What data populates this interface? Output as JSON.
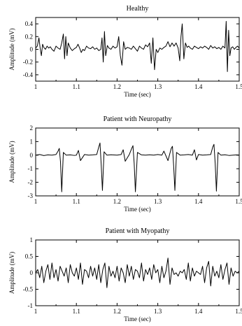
{
  "chart_data": [
    {
      "type": "line",
      "title": "Healthy",
      "xlabel": "Time (sec)",
      "ylabel": "Amplitude (mV)",
      "xlim": [
        1.0,
        1.5
      ],
      "ylim": [
        -0.5,
        0.5
      ],
      "x_ticks": [
        "1",
        "1.1",
        "1.2",
        "1.3",
        "1.4",
        "1.5"
      ],
      "y_ticks": [
        "0.4",
        "0.2",
        "0",
        "-0.2",
        "-0.4"
      ],
      "grid": false,
      "series": [
        {
          "x": [
            1.0,
            1.004,
            1.008,
            1.011,
            1.014,
            1.017,
            1.02,
            1.024,
            1.028,
            1.032,
            1.036,
            1.04,
            1.045,
            1.05,
            1.055,
            1.06,
            1.064,
            1.068,
            1.071,
            1.074,
            1.077,
            1.08,
            1.085,
            1.09,
            1.095,
            1.1,
            1.104,
            1.108,
            1.112,
            1.116,
            1.12,
            1.125,
            1.13,
            1.135,
            1.14,
            1.145,
            1.15,
            1.155,
            1.16,
            1.163,
            1.166,
            1.169,
            1.172,
            1.176,
            1.18,
            1.185,
            1.19,
            1.195,
            1.2,
            1.204,
            1.208,
            1.212,
            1.216,
            1.22,
            1.225,
            1.23,
            1.235,
            1.24,
            1.245,
            1.25,
            1.255,
            1.26,
            1.265,
            1.27,
            1.275,
            1.28,
            1.284,
            1.288,
            1.292,
            1.296,
            1.3,
            1.305,
            1.31,
            1.315,
            1.32,
            1.325,
            1.33,
            1.335,
            1.34,
            1.345,
            1.35,
            1.354,
            1.357,
            1.36,
            1.364,
            1.368,
            1.372,
            1.376,
            1.38,
            1.385,
            1.39,
            1.395,
            1.4,
            1.405,
            1.41,
            1.415,
            1.42,
            1.425,
            1.43,
            1.435,
            1.44,
            1.445,
            1.45,
            1.455,
            1.46,
            1.465,
            1.468,
            1.471,
            1.474,
            1.477,
            1.48,
            1.484,
            1.488,
            1.492,
            1.496,
            1.5
          ],
          "y": [
            0.02,
            0.05,
            0.18,
            0.02,
            -0.1,
            0.08,
            0.03,
            0.0,
            0.05,
            0.02,
            0.04,
            0.0,
            -0.03,
            0.05,
            0.02,
            0.0,
            0.1,
            0.24,
            -0.15,
            0.2,
            -0.1,
            0.1,
            0.02,
            -0.02,
            0.01,
            0.03,
            0.08,
            0.02,
            -0.05,
            0.0,
            -0.02,
            0.05,
            0.02,
            0.01,
            0.04,
            0.0,
            0.02,
            -0.02,
            0.0,
            0.18,
            -0.2,
            0.28,
            -0.1,
            0.06,
            0.02,
            0.0,
            0.05,
            0.02,
            0.04,
            0.2,
            -0.1,
            -0.25,
            0.12,
            0.0,
            0.03,
            0.02,
            0.0,
            0.05,
            0.01,
            -0.03,
            0.05,
            0.02,
            0.0,
            0.07,
            0.04,
            0.1,
            -0.22,
            0.18,
            -0.32,
            0.0,
            -0.05,
            0.02,
            0.0,
            0.03,
            0.05,
            0.12,
            0.04,
            0.1,
            0.05,
            0.1,
            0.02,
            -0.18,
            0.2,
            0.4,
            -0.15,
            0.1,
            0.03,
            0.05,
            0.02,
            0.0,
            0.05,
            0.03,
            0.01,
            0.04,
            0.02,
            0.05,
            0.03,
            0.0,
            0.06,
            0.02,
            0.04,
            0.01,
            0.03,
            0.0,
            0.05,
            0.02,
            0.44,
            -0.35,
            0.3,
            -0.1,
            0.02,
            0.04,
            0.0,
            0.03,
            0.05,
            0.02
          ]
        }
      ]
    },
    {
      "type": "line",
      "title": "Patient with Neuropathy",
      "xlabel": "Time (sec)",
      "ylabel": "Amplitude (mV)",
      "xlim": [
        1.0,
        1.5
      ],
      "ylim": [
        -3,
        2
      ],
      "x_ticks": [
        "1",
        "1.1",
        "1.2",
        "1.3",
        "1.4",
        "1.5"
      ],
      "y_ticks": [
        "2",
        "1",
        "0",
        "-1",
        "-2",
        "-3"
      ],
      "grid": false,
      "series": [
        {
          "x": [
            1.0,
            1.01,
            1.02,
            1.03,
            1.04,
            1.05,
            1.055,
            1.058,
            1.061,
            1.064,
            1.068,
            1.075,
            1.085,
            1.095,
            1.1,
            1.105,
            1.11,
            1.12,
            1.13,
            1.14,
            1.15,
            1.155,
            1.158,
            1.161,
            1.164,
            1.168,
            1.175,
            1.185,
            1.2,
            1.21,
            1.215,
            1.22,
            1.23,
            1.236,
            1.239,
            1.242,
            1.245,
            1.25,
            1.26,
            1.27,
            1.28,
            1.29,
            1.3,
            1.31,
            1.315,
            1.325,
            1.333,
            1.336,
            1.339,
            1.342,
            1.346,
            1.355,
            1.365,
            1.375,
            1.385,
            1.39,
            1.395,
            1.4,
            1.41,
            1.42,
            1.43,
            1.435,
            1.438,
            1.441,
            1.444,
            1.448,
            1.455,
            1.465,
            1.475,
            1.485,
            1.495,
            1.5
          ],
          "y": [
            0.0,
            0.05,
            -0.03,
            0.02,
            0.0,
            0.05,
            0.3,
            0.5,
            -0.5,
            -2.7,
            0.2,
            0.0,
            0.02,
            -0.02,
            0.0,
            0.35,
            -0.4,
            0.05,
            0.0,
            0.02,
            0.05,
            0.6,
            0.9,
            -0.7,
            -2.6,
            0.25,
            0.0,
            0.03,
            0.0,
            0.05,
            0.4,
            -0.45,
            0.05,
            0.5,
            0.7,
            -0.6,
            -2.7,
            0.2,
            0.02,
            0.0,
            0.03,
            0.0,
            0.05,
            0.0,
            0.3,
            -0.4,
            0.5,
            0.65,
            -0.8,
            -2.6,
            0.2,
            0.0,
            0.02,
            0.05,
            0.0,
            0.4,
            -0.35,
            0.05,
            0.0,
            0.02,
            0.05,
            0.6,
            0.8,
            -0.6,
            -2.65,
            0.2,
            0.0,
            0.03,
            -0.02,
            0.0,
            0.02,
            0.0
          ]
        }
      ]
    },
    {
      "type": "line",
      "title": "Patient with Myopathy",
      "xlabel": "Time (sec)",
      "ylabel": "Amplitude (mV)",
      "xlim": [
        1.0,
        1.5
      ],
      "ylim": [
        -1,
        1
      ],
      "x_ticks": [
        "1",
        "1.1",
        "1.2",
        "1.3",
        "1.4",
        "1.5"
      ],
      "y_ticks": [
        "1",
        "0.5",
        "0",
        "-0.5",
        "-1"
      ],
      "grid": false,
      "series": [
        {
          "x": [
            1.0,
            1.005,
            1.01,
            1.015,
            1.02,
            1.025,
            1.03,
            1.035,
            1.04,
            1.045,
            1.05,
            1.055,
            1.06,
            1.065,
            1.07,
            1.075,
            1.08,
            1.085,
            1.09,
            1.095,
            1.1,
            1.105,
            1.11,
            1.115,
            1.12,
            1.125,
            1.13,
            1.135,
            1.14,
            1.145,
            1.15,
            1.155,
            1.16,
            1.165,
            1.17,
            1.175,
            1.18,
            1.185,
            1.19,
            1.195,
            1.2,
            1.205,
            1.21,
            1.215,
            1.22,
            1.225,
            1.23,
            1.235,
            1.24,
            1.245,
            1.25,
            1.255,
            1.26,
            1.265,
            1.27,
            1.275,
            1.28,
            1.285,
            1.29,
            1.295,
            1.3,
            1.305,
            1.31,
            1.315,
            1.32,
            1.325,
            1.33,
            1.335,
            1.34,
            1.345,
            1.35,
            1.355,
            1.36,
            1.365,
            1.37,
            1.375,
            1.38,
            1.385,
            1.39,
            1.395,
            1.4,
            1.405,
            1.41,
            1.415,
            1.42,
            1.425,
            1.43,
            1.435,
            1.44,
            1.445,
            1.45,
            1.455,
            1.46,
            1.465,
            1.47,
            1.475,
            1.48,
            1.485,
            1.49,
            1.495,
            1.5
          ],
          "y": [
            0.0,
            0.1,
            -0.15,
            0.2,
            -0.3,
            0.05,
            0.25,
            -0.2,
            0.3,
            -0.15,
            0.1,
            -0.25,
            0.2,
            0.05,
            -0.1,
            0.15,
            -0.3,
            0.25,
            0.0,
            -0.1,
            0.15,
            -0.2,
            0.3,
            -0.35,
            0.1,
            0.05,
            -0.15,
            0.2,
            -0.1,
            0.15,
            -0.2,
            0.25,
            -0.3,
            0.1,
            0.3,
            -0.45,
            0.2,
            -0.1,
            0.05,
            -0.15,
            0.2,
            -0.25,
            0.15,
            0.0,
            -0.3,
            0.25,
            -0.1,
            0.2,
            -0.2,
            0.1,
            0.05,
            -0.15,
            0.3,
            -0.25,
            0.1,
            -0.05,
            0.15,
            -0.2,
            0.25,
            0.0,
            0.1,
            -0.3,
            0.2,
            -0.15,
            0.05,
            0.45,
            -0.35,
            0.15,
            -0.05,
            0.0,
            -0.1,
            0.05,
            0.0,
            0.1,
            -0.2,
            0.3,
            -0.25,
            0.15,
            -0.1,
            0.05,
            0.0,
            -0.05,
            0.2,
            -0.3,
            0.15,
            0.35,
            -0.4,
            0.2,
            -0.1,
            0.05,
            -0.15,
            0.25,
            -0.2,
            0.1,
            0.3,
            -0.35,
            0.15,
            -0.1,
            0.05,
            0.0,
            0.05
          ]
        }
      ]
    }
  ]
}
